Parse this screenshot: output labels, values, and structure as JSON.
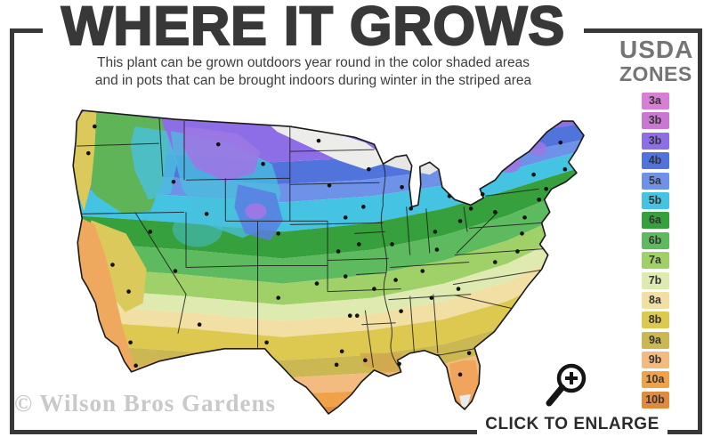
{
  "header": {
    "title": "WHERE IT GROWS",
    "subtitle_line1": "This plant can be grown outdoors year round in the color shaded areas",
    "subtitle_line2": "and in pots that can be brought indoors during winter in the striped area"
  },
  "legend": {
    "title_line1": "USDA",
    "title_line2": "ZONES",
    "zones": [
      {
        "label": "3a",
        "color": "#d67fd4"
      },
      {
        "label": "3b",
        "color": "#c878d0"
      },
      {
        "label": "3b",
        "color": "#8e6ee6"
      },
      {
        "label": "4b",
        "color": "#5173dc"
      },
      {
        "label": "5a",
        "color": "#6d92e8"
      },
      {
        "label": "5b",
        "color": "#45c3e2"
      },
      {
        "label": "6a",
        "color": "#35a03c"
      },
      {
        "label": "6b",
        "color": "#5eba5e"
      },
      {
        "label": "7a",
        "color": "#a0d169"
      },
      {
        "label": "7b",
        "color": "#dfeab1"
      },
      {
        "label": "8a",
        "color": "#f2dfa4"
      },
      {
        "label": "8b",
        "color": "#ddc94f"
      },
      {
        "label": "9a",
        "color": "#ccb852"
      },
      {
        "label": "9b",
        "color": "#f4bb80"
      },
      {
        "label": "10a",
        "color": "#f0a24a"
      },
      {
        "label": "10b",
        "color": "#e18a3d"
      }
    ]
  },
  "map": {
    "alt": "United States USDA plant hardiness zone map with city dots",
    "striped_area_color": "#ededeb",
    "outline_color": "#1a1a1a",
    "dot_color": "#111111"
  },
  "footer": {
    "watermark": "© Wilson Bros Gardens",
    "enlarge_label": "CLICK TO ENLARGE",
    "magnifier_icon": "magnifying-glass-plus"
  },
  "colors": {
    "frame": "#383838",
    "title": "#383838",
    "subtitle": "#3d3d3d",
    "legend_title": "#757575",
    "watermark": "#c9c9c9",
    "enlarge_text": "#2b2b2b"
  }
}
